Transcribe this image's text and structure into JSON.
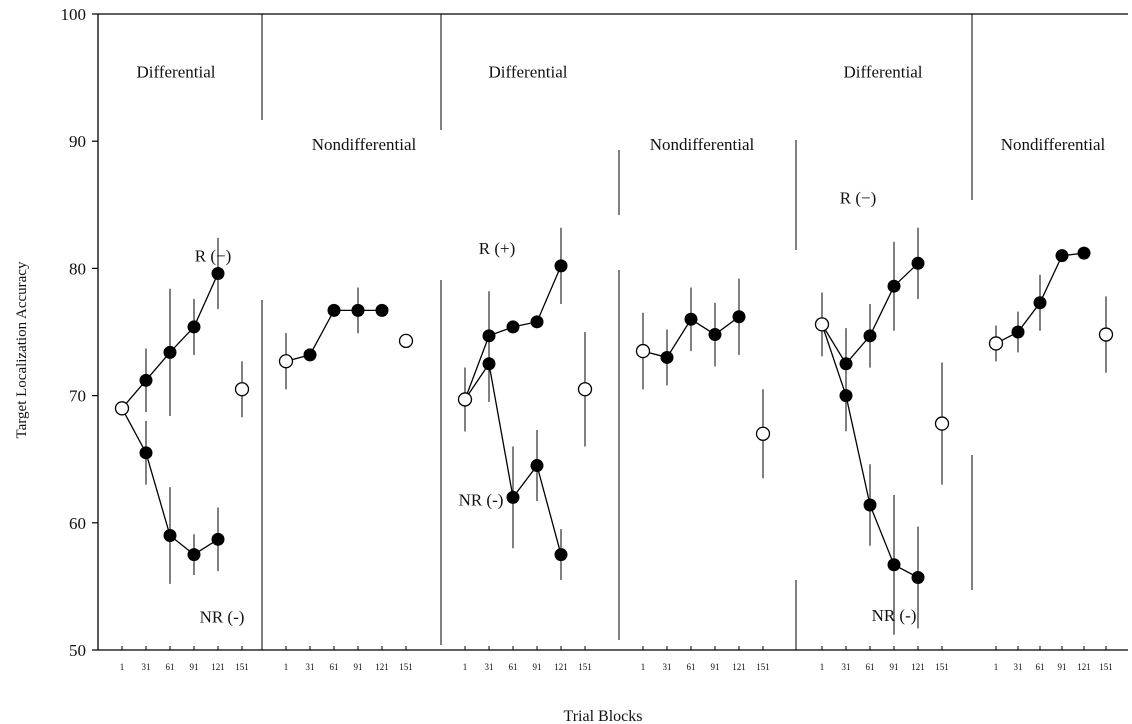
{
  "chart_data": {
    "type": "line",
    "ylabel": "Target Localization Accuracy",
    "xlabel": "Trial Blocks",
    "ylim": [
      50,
      100
    ],
    "yticks": [
      50,
      60,
      70,
      80,
      90,
      100
    ],
    "grid": false,
    "tick_labels": [
      "1",
      "31",
      "61",
      "91",
      "121",
      "151"
    ],
    "panels": [
      {
        "phase": "Differential",
        "open": [
          {
            "block": "1",
            "y": 69.0,
            "err": 0
          },
          {
            "block": "151",
            "y": 70.5,
            "err": 2.2
          }
        ],
        "series": [
          {
            "name": "R (−)",
            "blocks": [
              "1",
              "31",
              "61",
              "91",
              "121"
            ],
            "values": [
              69.0,
              71.2,
              73.4,
              75.4,
              79.6
            ],
            "errs": [
              0,
              2.5,
              5.0,
              2.2,
              2.8
            ]
          },
          {
            "name": "NR (-)",
            "blocks": [
              "1",
              "31",
              "61",
              "91",
              "121"
            ],
            "values": [
              69.0,
              65.5,
              59.0,
              57.5,
              58.7
            ],
            "errs": [
              0,
              2.5,
              3.8,
              1.6,
              2.5
            ]
          }
        ]
      },
      {
        "phase": "Nondifferential",
        "open": [
          {
            "block": "1",
            "y": 72.7,
            "err": 2.2
          },
          {
            "block": "151",
            "y": 74.3,
            "err": 0
          }
        ],
        "series": [
          {
            "name": "",
            "blocks": [
              "1",
              "31",
              "61",
              "91",
              "121"
            ],
            "values": [
              72.7,
              73.2,
              76.7,
              76.7,
              76.7
            ],
            "errs": [
              2.2,
              0,
              0,
              1.8,
              0
            ]
          }
        ]
      },
      {
        "phase": "Differential",
        "open": [
          {
            "block": "1",
            "y": 69.7,
            "err": 2.5
          },
          {
            "block": "151",
            "y": 70.5,
            "err": 4.5
          }
        ],
        "series": [
          {
            "name": "R (+)",
            "blocks": [
              "1",
              "31",
              "61",
              "91",
              "121"
            ],
            "values": [
              69.7,
              74.7,
              75.4,
              75.8,
              80.2
            ],
            "errs": [
              2.5,
              3.5,
              0,
              0,
              3.0
            ]
          },
          {
            "name": "NR (-)",
            "blocks": [
              "1",
              "31",
              "61",
              "91",
              "121"
            ],
            "values": [
              69.7,
              72.5,
              62.0,
              64.5,
              57.5
            ],
            "errs": [
              2.5,
              3.0,
              4.0,
              2.8,
              2.0
            ]
          }
        ]
      },
      {
        "phase": "Nondifferential",
        "open": [
          {
            "block": "1",
            "y": 73.5,
            "err": 3.0
          },
          {
            "block": "151",
            "y": 67.0,
            "err": 3.5
          }
        ],
        "series": [
          {
            "name": "",
            "blocks": [
              "1",
              "31",
              "61",
              "91",
              "121"
            ],
            "values": [
              73.5,
              73.0,
              76.0,
              74.8,
              76.2
            ],
            "errs": [
              3.0,
              2.2,
              2.5,
              2.5,
              3.0
            ]
          }
        ]
      },
      {
        "phase": "Differential",
        "open": [
          {
            "block": "1",
            "y": 75.6,
            "err": 2.5
          },
          {
            "block": "151",
            "y": 67.8,
            "err": 4.8
          }
        ],
        "series": [
          {
            "name": "R (−)",
            "blocks": [
              "1",
              "31",
              "61",
              "91",
              "121"
            ],
            "values": [
              75.6,
              72.5,
              74.7,
              78.6,
              80.4
            ],
            "errs": [
              2.5,
              2.8,
              2.5,
              3.5,
              2.8
            ]
          },
          {
            "name": "NR (-)",
            "blocks": [
              "1",
              "31",
              "61",
              "91",
              "121"
            ],
            "values": [
              75.6,
              70.0,
              61.4,
              56.7,
              55.7
            ],
            "errs": [
              2.5,
              2.8,
              3.2,
              5.5,
              4.0
            ]
          }
        ]
      },
      {
        "phase": "Nondifferential",
        "open": [
          {
            "block": "1",
            "y": 74.1,
            "err": 1.4
          },
          {
            "block": "151",
            "y": 74.8,
            "err": 3.0
          }
        ],
        "series": [
          {
            "name": "",
            "blocks": [
              "1",
              "31",
              "61",
              "91",
              "121"
            ],
            "values": [
              74.1,
              75.0,
              77.3,
              81.0,
              81.2
            ],
            "errs": [
              1.4,
              1.6,
              2.2,
              0,
              0
            ]
          }
        ]
      }
    ]
  }
}
